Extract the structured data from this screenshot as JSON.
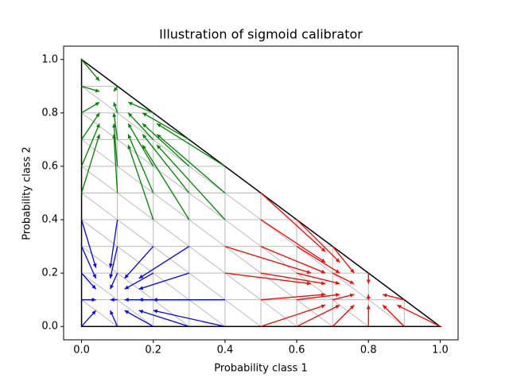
{
  "chart_data": {
    "type": "quiver",
    "title": "Illustration of sigmoid calibrator",
    "xlabel": "Probability class 1",
    "ylabel": "Probability class 2",
    "xlim": [
      -0.05,
      1.05
    ],
    "ylim": [
      -0.05,
      1.05
    ],
    "xticks": [
      {
        "value": 0,
        "label": "0.0"
      },
      {
        "value": 0.2,
        "label": "0.2"
      },
      {
        "value": 0.4,
        "label": "0.4"
      },
      {
        "value": 0.6,
        "label": "0.6"
      },
      {
        "value": 0.8,
        "label": "0.8"
      },
      {
        "value": 1,
        "label": "1.0"
      }
    ],
    "yticks": [
      {
        "value": 0,
        "label": "0.0"
      },
      {
        "value": 0.2,
        "label": "0.2"
      },
      {
        "value": 0.4,
        "label": "0.4"
      },
      {
        "value": 0.6,
        "label": "0.6"
      },
      {
        "value": 0.8,
        "label": "0.8"
      },
      {
        "value": 1,
        "label": "1.0"
      }
    ],
    "series": [
      {
        "color": "#0000ff",
        "x": [
          0,
          0,
          0,
          0,
          0,
          0.1,
          0.1,
          0.1,
          0.1,
          0.1,
          0.2,
          0.2,
          0.2,
          0.2,
          0.3,
          0.3,
          0.3,
          0.3,
          0.4,
          0.4
        ],
        "y": [
          0,
          0.1,
          0.2,
          0.3,
          0.4,
          0,
          0.1,
          0.2,
          0.3,
          0.4,
          0,
          0.1,
          0.2,
          0.3,
          0,
          0.1,
          0.2,
          0.3,
          0,
          0.1
        ],
        "dx": [
          0.04,
          0.04,
          0.04,
          0.04,
          0.04,
          -0.02,
          -0.02,
          -0.02,
          -0.02,
          -0.02,
          -0.08,
          -0.08,
          -0.08,
          -0.08,
          -0.14,
          -0.14,
          -0.14,
          -0.14,
          -0.2,
          -0.2
        ],
        "dy": [
          0.06,
          0,
          -0.06,
          -0.12,
          -0.18,
          0.06,
          0,
          -0.06,
          -0.12,
          -0.18,
          0.06,
          0,
          -0.06,
          -0.12,
          0.06,
          0,
          -0.06,
          -0.12,
          0.06,
          0
        ]
      },
      {
        "color": "#008000",
        "x": [
          0,
          0,
          0,
          0,
          0,
          0,
          0.1,
          0.1,
          0.1,
          0.1,
          0.1,
          0.2,
          0.2,
          0.2,
          0.2,
          0.2,
          0.3,
          0.3,
          0.3,
          0.3,
          0.4,
          0.4,
          0.4
        ],
        "y": [
          0.5,
          0.6,
          0.7,
          0.8,
          0.9,
          1,
          0.5,
          0.6,
          0.7,
          0.8,
          0.9,
          0.4,
          0.5,
          0.6,
          0.7,
          0.8,
          0.4,
          0.5,
          0.6,
          0.7,
          0.4,
          0.5,
          0.6
        ],
        "dx": [
          0.05,
          0.05,
          0.05,
          0.05,
          0.05,
          0.05,
          -0.01,
          -0.01,
          -0.01,
          -0.01,
          -0.01,
          -0.07,
          -0.07,
          -0.07,
          -0.07,
          -0.07,
          -0.13,
          -0.13,
          -0.13,
          -0.13,
          -0.19,
          -0.19,
          -0.19
        ],
        "dy": [
          0.22,
          0.16,
          0.1,
          0.04,
          -0.02,
          -0.08,
          0.22,
          0.16,
          0.1,
          0.04,
          -0.02,
          0.28,
          0.22,
          0.16,
          0.1,
          0.04,
          0.28,
          0.22,
          0.16,
          0.1,
          0.28,
          0.22,
          0.16
        ]
      },
      {
        "color": "#ff0000",
        "x": [
          0.4,
          0.4,
          0.5,
          0.5,
          0.5,
          0.5,
          0.5,
          0.5,
          0.6,
          0.6,
          0.6,
          0.6,
          0.6,
          0.7,
          0.7,
          0.7,
          0.7,
          0.8,
          0.8,
          0.8,
          0.9,
          0.9,
          1
        ],
        "y": [
          0.2,
          0.3,
          0,
          0.1,
          0.2,
          0.3,
          0.4,
          0.5,
          0,
          0.1,
          0.2,
          0.3,
          0.4,
          0,
          0.1,
          0.2,
          0.3,
          0,
          0.1,
          0.2,
          0,
          0.1,
          0
        ],
        "dx": [
          0.24,
          0.24,
          0.18,
          0.18,
          0.18,
          0.18,
          0.18,
          0.18,
          0.12,
          0.12,
          0.12,
          0.12,
          0.12,
          0.06,
          0.06,
          0.06,
          0.06,
          0,
          0,
          0,
          -0.06,
          -0.06,
          -0.12
        ],
        "dy": [
          -0.04,
          -0.1,
          0.08,
          0.02,
          -0.04,
          -0.1,
          -0.16,
          -0.22,
          0.08,
          0.02,
          -0.04,
          -0.1,
          -0.16,
          0.08,
          0.02,
          -0.04,
          -0.1,
          0.08,
          0.02,
          -0.04,
          0.08,
          0.02,
          0.08
        ]
      }
    ]
  }
}
